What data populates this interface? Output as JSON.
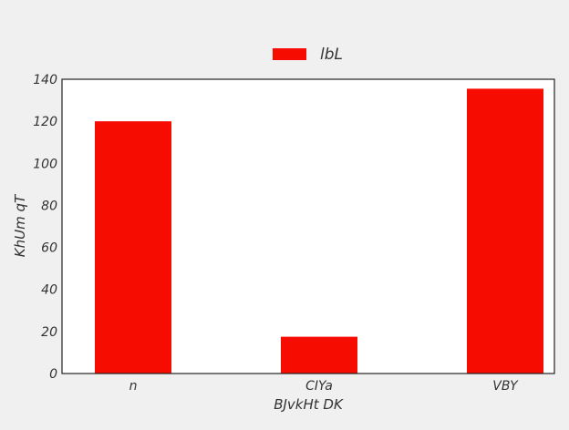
{
  "chart_data": {
    "type": "bar",
    "categories": [
      "n",
      "CIYa",
      "VBY"
    ],
    "series": [
      {
        "name": "lbL",
        "values": [
          120,
          17.5,
          135.5
        ],
        "color": "#f60c00"
      }
    ],
    "xlabel": "BJvkHt DK",
    "ylabel": "KhUm qT",
    "ylim": [
      0,
      140
    ],
    "yticks": [
      0,
      20,
      40,
      60,
      80,
      100,
      120,
      140
    ],
    "grid": false,
    "legend_position": "top-center",
    "background": "#f0f0f0",
    "plot_background": "#ffffff"
  }
}
